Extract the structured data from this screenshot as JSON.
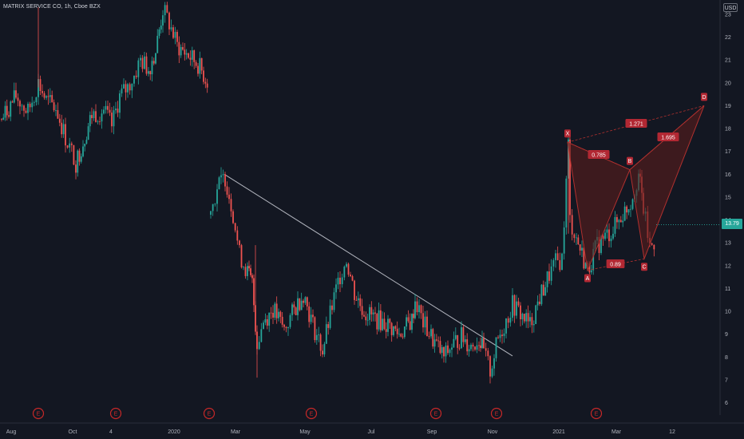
{
  "header": {
    "title": "MATRIX SERVICE CO, 1h, Cboe BZX",
    "currency": "USD",
    "last_price": "13.79"
  },
  "colors": {
    "background": "#131722",
    "up": "#26a69a",
    "down": "#ef5350",
    "trendline": "#b2b5be",
    "pattern_fill": "#5a1d1d",
    "pattern_line": "#b0302e",
    "label_fill": "#b22833",
    "earnings_marker": "#c62828"
  },
  "chart_data": {
    "type": "candlestick",
    "y_axis": {
      "ticks": [
        "6",
        "7",
        "8",
        "9",
        "10",
        "11",
        "12",
        "13",
        "14",
        "15",
        "16",
        "17",
        "18",
        "19",
        "20",
        "21",
        "22",
        "23"
      ],
      "range": [
        5.4,
        23.4
      ]
    },
    "x_axis": {
      "ticks": [
        "Aug",
        "Oct",
        "4",
        "2020",
        "Mar",
        "May",
        "Jul",
        "Sep",
        "Nov",
        "2021",
        "Mar",
        "12"
      ]
    },
    "price_path": [
      {
        "t": "Aug",
        "p": 18.4
      },
      {
        "t": "Aug",
        "p": 19.4
      },
      {
        "t": "Aug",
        "p": 18.7
      },
      {
        "t": "Aug",
        "p": 20.0
      },
      {
        "t": "Sep",
        "p": 19.2
      },
      {
        "t": "Sep",
        "p": 18.9
      },
      {
        "t": "Sep",
        "p": 17.6
      },
      {
        "t": "Oct",
        "p": 16.5
      },
      {
        "t": "Oct",
        "p": 17.4
      },
      {
        "t": "Oct",
        "p": 18.6
      },
      {
        "t": "Oct",
        "p": 18.8
      },
      {
        "t": "Oct",
        "p": 18.1
      },
      {
        "t": "Nov",
        "p": 19.4
      },
      {
        "t": "Nov",
        "p": 19.8
      },
      {
        "t": "Nov",
        "p": 20.3
      },
      {
        "t": "Nov",
        "p": 21.0
      },
      {
        "t": "Dec",
        "p": 20.6
      },
      {
        "t": "Dec",
        "p": 21.4
      },
      {
        "t": "Dec",
        "p": 23.2
      },
      {
        "t": "Dec",
        "p": 22.6
      },
      {
        "t": "Jan",
        "p": 21.6
      },
      {
        "t": "Jan",
        "p": 21.2
      },
      {
        "t": "Jan",
        "p": 20.8
      },
      {
        "t": "Jan",
        "p": 19.9
      },
      {
        "t": "Feb",
        "p": 14.4
      },
      {
        "t": "Feb",
        "p": 15.4
      },
      {
        "t": "Feb",
        "p": 15.9
      },
      {
        "t": "Feb",
        "p": 14.3
      },
      {
        "t": "Mar",
        "p": 12.5
      },
      {
        "t": "Mar",
        "p": 11.7
      },
      {
        "t": "Mar",
        "p": 11.2
      },
      {
        "t": "Mar",
        "p": 8.6
      },
      {
        "t": "Mar",
        "p": 9.6
      },
      {
        "t": "Apr",
        "p": 10.1
      },
      {
        "t": "Apr",
        "p": 9.2
      },
      {
        "t": "Apr",
        "p": 9.9
      },
      {
        "t": "May",
        "p": 10.8
      },
      {
        "t": "May",
        "p": 9.4
      },
      {
        "t": "May",
        "p": 8.3
      },
      {
        "t": "May",
        "p": 10.2
      },
      {
        "t": "Jun",
        "p": 11.6
      },
      {
        "t": "Jun",
        "p": 12.3
      },
      {
        "t": "Jun",
        "p": 10.8
      },
      {
        "t": "Jun",
        "p": 10.0
      },
      {
        "t": "Jul",
        "p": 9.7
      },
      {
        "t": "Jul",
        "p": 9.4
      },
      {
        "t": "Jul",
        "p": 9.0
      },
      {
        "t": "Aug",
        "p": 9.6
      },
      {
        "t": "Aug",
        "p": 10.5
      },
      {
        "t": "Aug",
        "p": 9.5
      },
      {
        "t": "Aug",
        "p": 8.9
      },
      {
        "t": "Sep",
        "p": 8.0
      },
      {
        "t": "Sep",
        "p": 8.5
      },
      {
        "t": "Sep",
        "p": 8.9
      },
      {
        "t": "Oct",
        "p": 8.5
      },
      {
        "t": "Oct",
        "p": 8.8
      },
      {
        "t": "Oct",
        "p": 8.2
      },
      {
        "t": "Nov",
        "p": 7.4
      },
      {
        "t": "Nov",
        "p": 8.8
      },
      {
        "t": "Nov",
        "p": 9.6
      },
      {
        "t": "Nov",
        "p": 10.3
      },
      {
        "t": "Dec",
        "p": 9.9
      },
      {
        "t": "Dec",
        "p": 9.4
      },
      {
        "t": "Dec",
        "p": 10.6
      },
      {
        "t": "Dec",
        "p": 11.6
      },
      {
        "t": "2021",
        "p": 12.1
      },
      {
        "t": "2021",
        "p": 12.3
      },
      {
        "t": "Jan",
        "p": 17.3
      },
      {
        "t": "Jan",
        "p": 14.0
      },
      {
        "t": "Jan",
        "p": 13.2
      },
      {
        "t": "Jan",
        "p": 11.8
      },
      {
        "t": "Feb",
        "p": 12.9
      },
      {
        "t": "Feb",
        "p": 13.6
      },
      {
        "t": "Feb",
        "p": 14.8
      },
      {
        "t": "Mar",
        "p": 16.0
      },
      {
        "t": "Mar",
        "p": 14.5
      },
      {
        "t": "Mar",
        "p": 12.8
      },
      {
        "t": "Mar",
        "p": 13.1
      },
      {
        "t": "Mar",
        "p": 13.79
      }
    ],
    "trendline": {
      "from": {
        "t": "Feb 2020",
        "p": 16.0
      },
      "to": {
        "t": "Nov 2020",
        "p": 8.05
      }
    },
    "harmonic_pattern": {
      "points": [
        {
          "label": "X",
          "p": 17.4
        },
        {
          "label": "A",
          "p": 11.8
        },
        {
          "label": "B",
          "p": 16.2
        },
        {
          "label": "C",
          "p": 12.3
        },
        {
          "label": "D",
          "p": 19.0
        }
      ],
      "ratios": [
        "0.785",
        "0.89",
        "1.695",
        "1.271"
      ]
    },
    "earnings_markers": [
      "E",
      "E",
      "E",
      "E",
      "E",
      "E",
      "E"
    ]
  }
}
